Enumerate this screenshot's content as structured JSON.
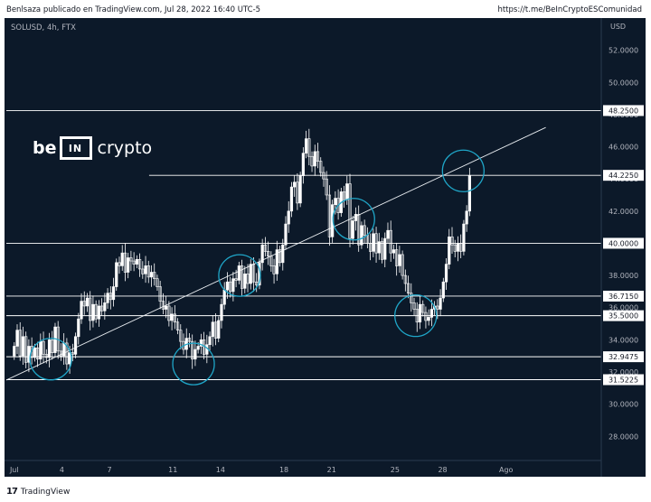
{
  "header": {
    "publisher": "Benlsaza publicado en TradingView.com, Jul 28, 2022 16:40 UTC-5",
    "link": "https://t.me/BeInCryptoESComunidad"
  },
  "symbol": "SOLUSD, 4h, FTX",
  "brand": {
    "be": "be",
    "box": "IN",
    "crypto": "crypto",
    "color": "#ffffff"
  },
  "footer": {
    "label": "TradingView",
    "icon": "tradingview-logo-icon"
  },
  "colors": {
    "background": "#0c1929",
    "candle_up": "#ffffff",
    "candle_down": "#ffffff",
    "levels": "#ffffff",
    "circles": "#1fa6c8",
    "axis_text": "#b2b5be",
    "tag_bg": "#ffffff",
    "tag_text": "#131722"
  },
  "chart_data": {
    "type": "candlestick",
    "symbol": "SOLUSD",
    "interval": "4h",
    "exchange": "FTX",
    "currency_label": "USD",
    "y_range": [
      26.5,
      54.0
    ],
    "x_range_days": [
      0.5,
      38.0
    ],
    "x_ticks": [
      {
        "day": 1,
        "label": "Jul"
      },
      {
        "day": 4,
        "label": "4"
      },
      {
        "day": 7,
        "label": "7"
      },
      {
        "day": 11,
        "label": "11"
      },
      {
        "day": 14,
        "label": "14"
      },
      {
        "day": 18,
        "label": "18"
      },
      {
        "day": 21,
        "label": "21"
      },
      {
        "day": 25,
        "label": "25"
      },
      {
        "day": 28,
        "label": "28"
      },
      {
        "day": 32,
        "label": "Ago"
      }
    ],
    "y_ticks": [
      28,
      30,
      32,
      34,
      36,
      38,
      40,
      42,
      44,
      46,
      48,
      50,
      52
    ],
    "y_tick_labels": [
      "28.0000",
      "30.0000",
      "32.0000",
      "34.0000",
      "36.0000",
      "38.0000",
      "40.0000",
      "42.0000",
      "44.0000",
      "46.0000",
      "48.0000",
      "50.0000",
      "52.0000"
    ],
    "horizontal_levels": [
      {
        "value": 48.25,
        "label": "48.2500",
        "start_day": 0.5
      },
      {
        "value": 44.225,
        "label": "44.2250",
        "start_day": 9.5
      },
      {
        "value": 40.0,
        "label": "40.0000",
        "start_day": 0.5
      },
      {
        "value": 36.715,
        "label": "36.7150",
        "start_day": 0.5
      },
      {
        "value": 35.5,
        "label": "35.5000",
        "start_day": 0.5
      },
      {
        "value": 32.9475,
        "label": "32.9475",
        "start_day": 0.5
      },
      {
        "value": 31.5225,
        "label": "31.5225",
        "start_day": 0.5
      }
    ],
    "trendline": {
      "from": {
        "day": 0.5,
        "price": 31.5
      },
      "to": {
        "day": 34.5,
        "price": 47.2
      }
    },
    "highlight_circles": [
      {
        "day": 3.3,
        "price": 32.8
      },
      {
        "day": 12.3,
        "price": 32.5
      },
      {
        "day": 15.2,
        "price": 38.0
      },
      {
        "day": 22.4,
        "price": 41.5
      },
      {
        "day": 26.3,
        "price": 35.5
      },
      {
        "day": 29.3,
        "price": 44.5
      }
    ],
    "closes": [
      33.6,
      34.6,
      33.0,
      34.2,
      32.6,
      33.6,
      32.9,
      33.5,
      32.8,
      33.9,
      33.1,
      32.9,
      34.0,
      33.2,
      34.8,
      33.3,
      33.0,
      33.8,
      32.5,
      33.2,
      33.1,
      34.2,
      35.3,
      36.4,
      36.1,
      36.6,
      35.2,
      36.2,
      35.3,
      36.1,
      35.8,
      36.3,
      36.9,
      36.5,
      37.3,
      38.8,
      38.6,
      39.4,
      38.2,
      39.1,
      38.9,
      38.7,
      39.0,
      38.4,
      38.1,
      38.6,
      37.9,
      38.2,
      37.8,
      37.3,
      36.4,
      35.9,
      36.1,
      35.2,
      35.6,
      35.1,
      34.6,
      33.9,
      33.4,
      34.1,
      33.9,
      32.8,
      33.4,
      33.6,
      34.0,
      33.1,
      33.7,
      34.2,
      35.1,
      34.1,
      35.2,
      36.2,
      37.1,
      37.6,
      37.0,
      37.8,
      37.7,
      38.6,
      37.2,
      38.1,
      37.5,
      38.7,
      37.6,
      37.4,
      38.8,
      39.9,
      39.5,
      39.2,
      38.6,
      38.1,
      39.6,
      38.8,
      39.9,
      41.2,
      42.0,
      43.5,
      43.8,
      42.5,
      44.2,
      45.6,
      46.5,
      45.4,
      44.8,
      45.7,
      45.1,
      44.4,
      44.0,
      43.0,
      40.4,
      42.4,
      42.8,
      41.9,
      43.2,
      42.7,
      43.7,
      40.3,
      41.4,
      41.8,
      39.9,
      41.1,
      40.5,
      40.0,
      39.5,
      40.6,
      39.4,
      40.1,
      39.0,
      40.3,
      40.8,
      39.4,
      39.6,
      38.6,
      39.3,
      38.0,
      37.5,
      36.9,
      36.3,
      35.9,
      35.1,
      36.2,
      35.7,
      35.2,
      35.4,
      35.9,
      36.1,
      35.9,
      36.6,
      37.6,
      38.7,
      40.4,
      39.9,
      39.5,
      40.0,
      39.5,
      41.2,
      42.0,
      44.2
    ]
  }
}
